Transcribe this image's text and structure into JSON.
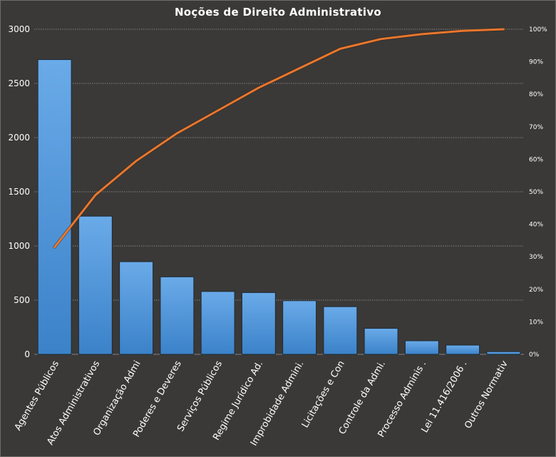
{
  "chart_data": {
    "type": "bar",
    "title": "Noções de Direito  Administrativo",
    "categories": [
      "Agentes Públicos",
      "Atos Administrativos",
      "Organização Admi",
      "Poderes e Deveres",
      "Serviços Públicos",
      "Regime Jurídico Ad.",
      "Improbidade Admini.",
      "Licitações e Con",
      "Controle da Admi.",
      "Processo Adminis .",
      "Lei 11.416/2006 .",
      "Outros  Normativ"
    ],
    "series": [
      {
        "type": "bar",
        "values": [
          2720,
          1275,
          855,
          715,
          580,
          570,
          495,
          440,
          240,
          125,
          85,
          25
        ]
      },
      {
        "type": "line",
        "axis": "secondary",
        "values": [
          0.33,
          0.49,
          0.595,
          0.68,
          0.75,
          0.82,
          0.88,
          0.94,
          0.97,
          0.985,
          0.995,
          1.0
        ]
      }
    ],
    "ylim": [
      0,
      3000
    ],
    "yticks": [
      "0",
      "500",
      "1000",
      "1500",
      "2000",
      "2500",
      "3000"
    ],
    "y2lim": [
      0,
      1
    ],
    "y2ticks": [
      "0%",
      "10%",
      "20%",
      "30%",
      "40%",
      "50%",
      "60%",
      "70%",
      "80%",
      "90%",
      "100%"
    ],
    "grid": true,
    "colors": {
      "bar_top": "#6aaae8",
      "bar_bottom": "#3b82c9",
      "bar_edge": "#1e2a36",
      "line": "#e8772e",
      "grid": "#9a9a9a",
      "background": "#3a3937"
    }
  }
}
